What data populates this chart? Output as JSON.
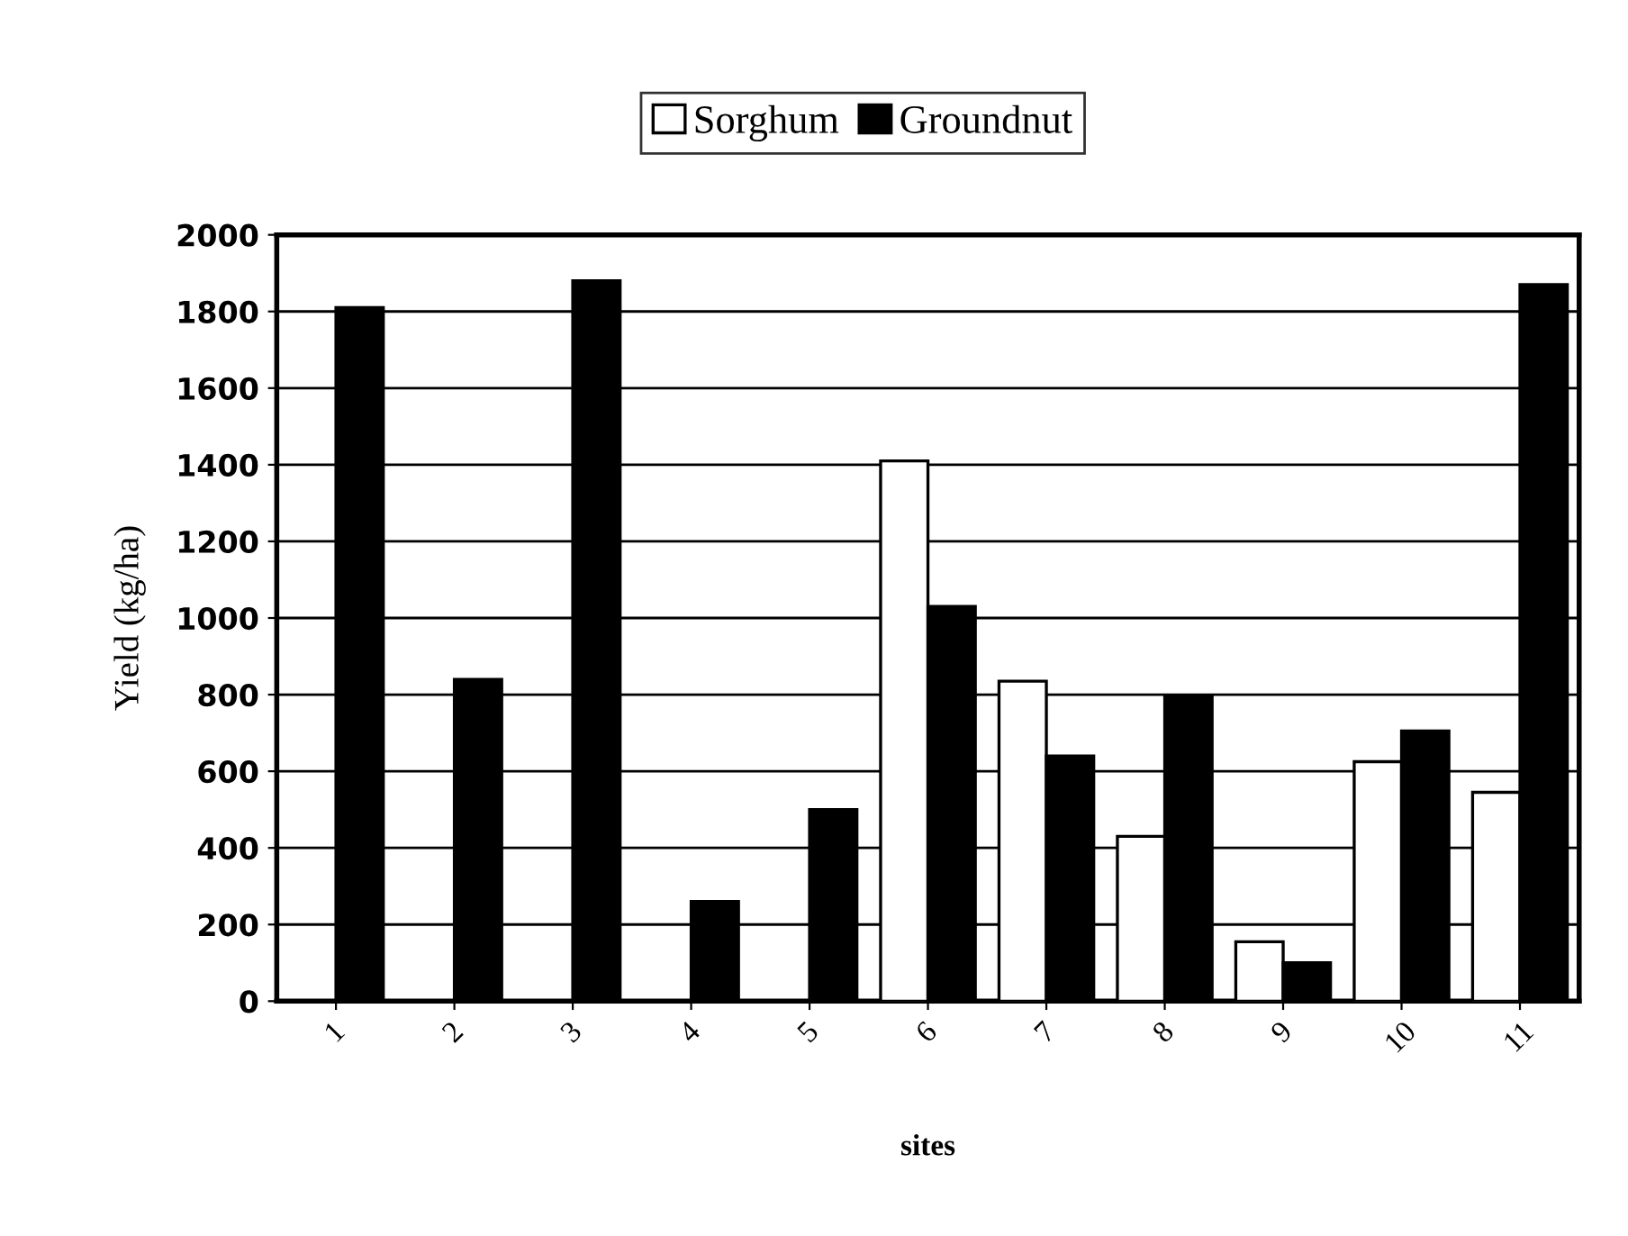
{
  "chart_data": {
    "type": "bar",
    "xlabel": "sites",
    "ylabel": "Yield (kg/ha)",
    "categories": [
      "1",
      "2",
      "3",
      "4",
      "5",
      "6",
      "7",
      "8",
      "9",
      "10",
      "11"
    ],
    "series": [
      {
        "name": "Sorghum",
        "color": "#ffffff",
        "values": [
          null,
          null,
          null,
          null,
          null,
          1410,
          835,
          430,
          155,
          625,
          545
        ]
      },
      {
        "name": "Groundnut",
        "color": "#000000",
        "values": [
          1810,
          840,
          1880,
          260,
          500,
          1030,
          640,
          795,
          100,
          705,
          1870
        ]
      }
    ],
    "ylim": [
      0,
      2000
    ],
    "yticks": [
      0,
      200,
      400,
      600,
      800,
      1000,
      1200,
      1400,
      1600,
      1800,
      2000
    ],
    "grid": "y",
    "legend": "top"
  }
}
